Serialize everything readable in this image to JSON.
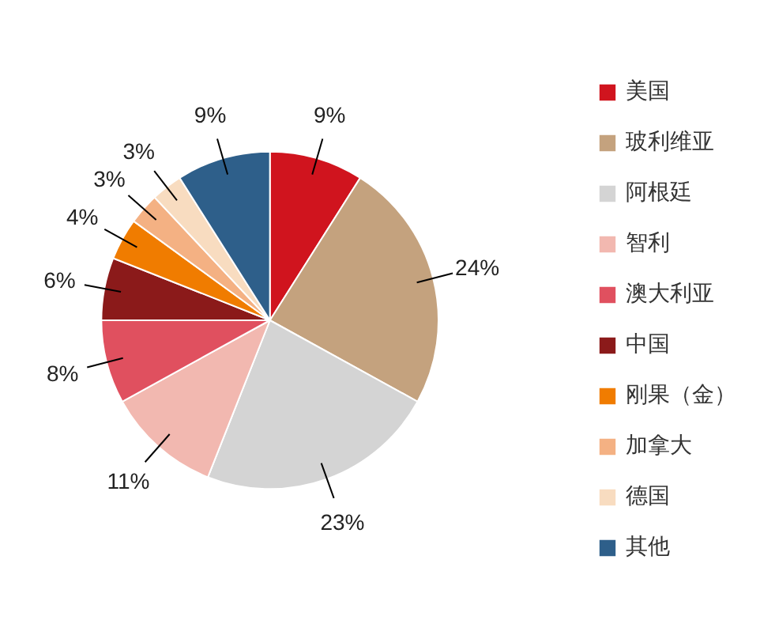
{
  "chart_data": {
    "type": "pie",
    "categories": [
      "美国",
      "玻利维亚",
      "阿根廷",
      "智利",
      "澳大利亚",
      "中国",
      "刚果（金）",
      "加拿大",
      "德国",
      "其他"
    ],
    "values": [
      9,
      24,
      23,
      11,
      8,
      6,
      4,
      3,
      3,
      9
    ],
    "colors": [
      "#d0141e",
      "#c4a27e",
      "#d4d4d4",
      "#f2b8b0",
      "#e0505f",
      "#8b1a1a",
      "#f07c00",
      "#f4b183",
      "#f8dcc0",
      "#2e5f8a"
    ],
    "value_labels": [
      "9%",
      "24%",
      "23%",
      "11%",
      "8%",
      "6%",
      "4%",
      "3%",
      "3%",
      "9%"
    ],
    "legend": "right"
  }
}
